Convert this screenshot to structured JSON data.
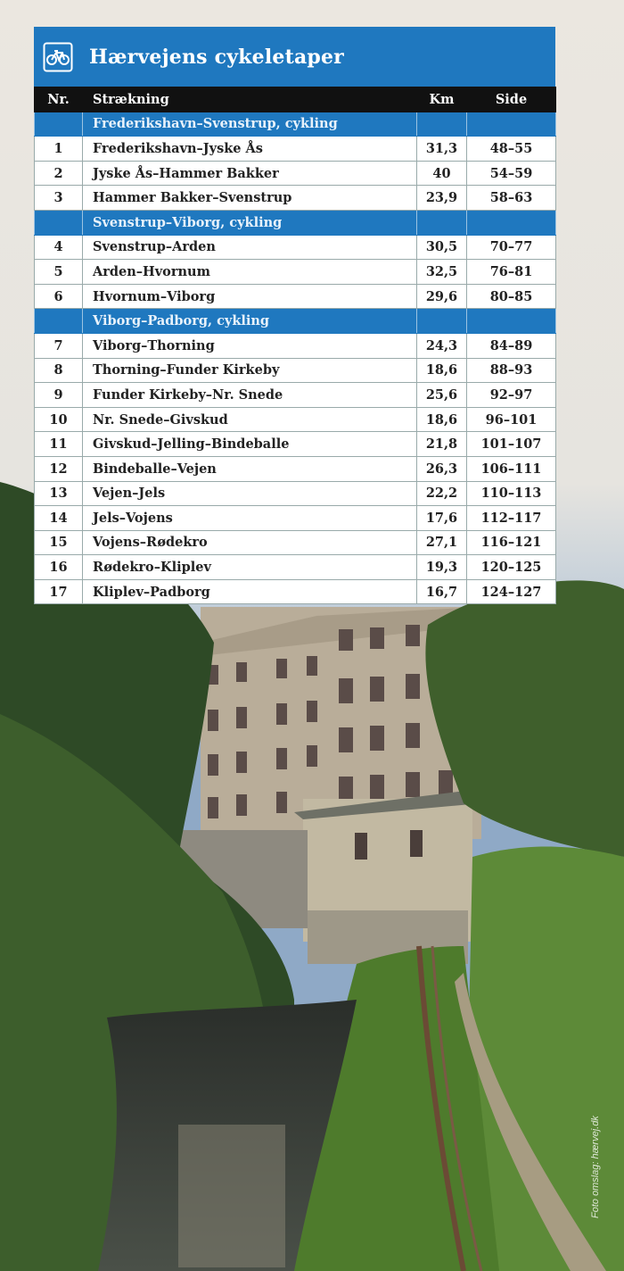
{
  "header": {
    "title": "Hærvejens cykeletaper"
  },
  "table": {
    "columns": [
      "Nr.",
      "Strækning",
      "Km",
      "Side"
    ],
    "sections": [
      {
        "title": "Frederikshavn–Svenstrup, cykling",
        "rows": [
          [
            "1",
            "Frederikshavn–Jyske Ås",
            "31,3",
            "48–55"
          ],
          [
            "2",
            "Jyske Ås–Hammer Bakker",
            "40",
            "54–59"
          ],
          [
            "3",
            "Hammer Bakker–Svenstrup",
            "23,9",
            "58–63"
          ]
        ]
      },
      {
        "title": "Svenstrup–Viborg, cykling",
        "rows": [
          [
            "4",
            "Svenstrup–Arden",
            "30,5",
            "70–77"
          ],
          [
            "5",
            "Arden–Hvornum",
            "32,5",
            "76–81"
          ],
          [
            "6",
            "Hvornum–Viborg",
            "29,6",
            "80–85"
          ]
        ]
      },
      {
        "title": "Viborg–Padborg, cykling",
        "rows": [
          [
            "7",
            "Viborg–Thorning",
            "24,3",
            "84–89"
          ],
          [
            "8",
            "Thorning–Funder Kirkeby",
            "18,6",
            "88–93"
          ],
          [
            "9",
            "Funder Kirkeby–Nr. Snede",
            "25,6",
            "92–97"
          ],
          [
            "10",
            "Nr. Snede–Givskud",
            "18,6",
            "96–101"
          ],
          [
            "11",
            "Givskud–Jelling–Bindeballe",
            "21,8",
            "101–107"
          ],
          [
            "12",
            "Bindeballe–Vejen",
            "26,3",
            "106–111"
          ],
          [
            "13",
            "Vejen–Jels",
            "22,2",
            "110–113"
          ],
          [
            "14",
            "Jels–Vojens",
            "17,6",
            "112–117"
          ],
          [
            "15",
            "Vojens–Rødekro",
            "27,1",
            "116–121"
          ],
          [
            "16",
            "Rødekro–Kliplev",
            "19,3",
            "120–125"
          ],
          [
            "17",
            "Kliplev–Padborg",
            "16,7",
            "124–127"
          ]
        ]
      }
    ]
  },
  "credit": "Foto omslag: hærvej.dk"
}
